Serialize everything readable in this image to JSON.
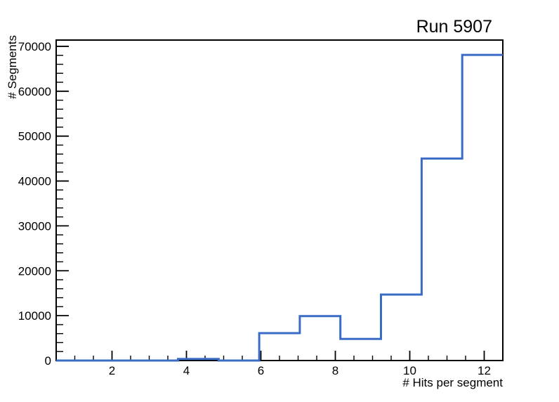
{
  "window": {
    "background_color": "#ffffff"
  },
  "chart_data": {
    "type": "histogram-step",
    "title": "Run 5907",
    "xlabel": "# Hits per segment",
    "ylabel": "# Segments",
    "xlim": [
      0.5,
      12.5
    ],
    "ylim": [
      0,
      71400
    ],
    "grid": false,
    "legend": null,
    "line_color": "#3A6CC6",
    "axis_color": "#000000",
    "x_axis": {
      "major_ticks": [
        2,
        4,
        6,
        8,
        10,
        12
      ],
      "major_tick_labels": [
        "2",
        "4",
        "6",
        "8",
        "10",
        "12"
      ],
      "minor_tick_step": 0.5
    },
    "y_axis": {
      "major_ticks": [
        0,
        10000,
        20000,
        30000,
        40000,
        50000,
        60000,
        70000
      ],
      "major_tick_labels": [
        "0",
        "10000",
        "20000",
        "30000",
        "40000",
        "50000",
        "60000",
        "70000"
      ],
      "minor_tick_step": 2000
    },
    "bin_edges": [
      0.5,
      1.5909,
      2.6818,
      3.7727,
      4.8636,
      5.9545,
      7.0455,
      8.1364,
      9.2273,
      10.3182,
      11.4091,
      12.5
    ],
    "counts": [
      0,
      0,
      0,
      350,
      0,
      6100,
      9900,
      4800,
      14700,
      45000,
      68100
    ]
  }
}
